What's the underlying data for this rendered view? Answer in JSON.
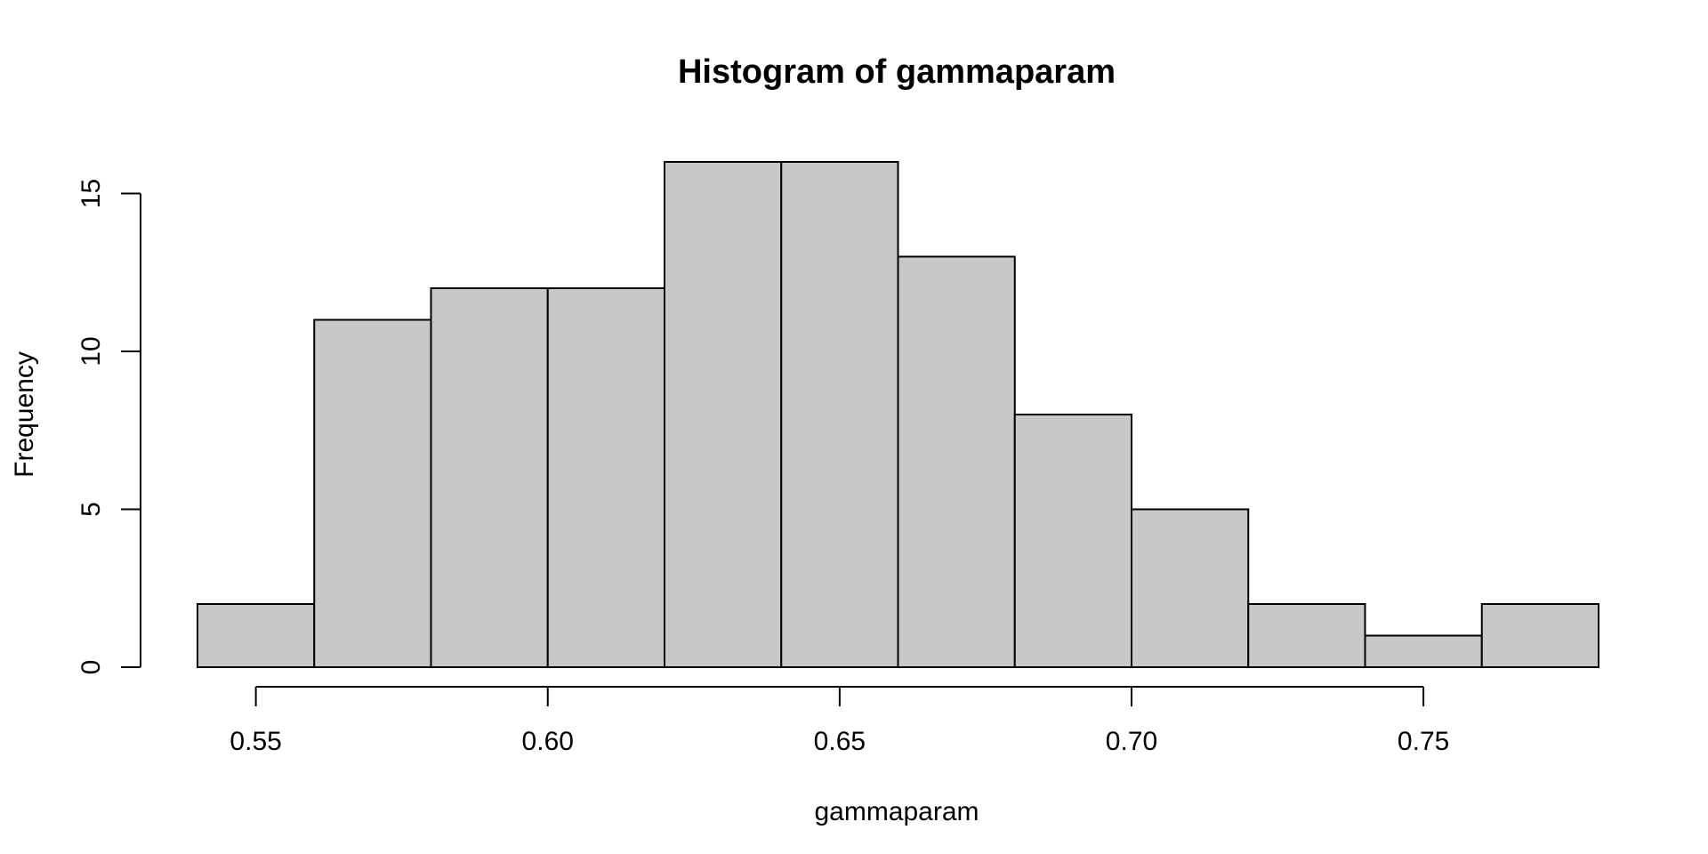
{
  "chart_data": {
    "type": "bar",
    "subtype": "histogram",
    "title": "Histogram of gammaparam",
    "xlabel": "gammaparam",
    "ylabel": "Frequency",
    "bins": [
      {
        "start": 0.54,
        "end": 0.56,
        "count": 2
      },
      {
        "start": 0.56,
        "end": 0.58,
        "count": 11
      },
      {
        "start": 0.58,
        "end": 0.6,
        "count": 12
      },
      {
        "start": 0.6,
        "end": 0.62,
        "count": 12
      },
      {
        "start": 0.62,
        "end": 0.64,
        "count": 16
      },
      {
        "start": 0.64,
        "end": 0.66,
        "count": 16
      },
      {
        "start": 0.66,
        "end": 0.68,
        "count": 13
      },
      {
        "start": 0.68,
        "end": 0.7,
        "count": 8
      },
      {
        "start": 0.7,
        "end": 0.72,
        "count": 5
      },
      {
        "start": 0.72,
        "end": 0.74,
        "count": 2
      },
      {
        "start": 0.74,
        "end": 0.76,
        "count": 1
      },
      {
        "start": 0.76,
        "end": 0.78,
        "count": 2
      }
    ],
    "xlim": [
      0.54,
      0.78
    ],
    "ylim": [
      0,
      16
    ],
    "x_ticks": [
      0.55,
      0.6,
      0.65,
      0.7,
      0.75
    ],
    "x_tick_labels": [
      "0.55",
      "0.60",
      "0.65",
      "0.70",
      "0.75"
    ],
    "y_ticks": [
      0,
      5,
      10,
      15
    ],
    "y_tick_labels": [
      "0",
      "5",
      "10",
      "15"
    ],
    "grid": false,
    "bar_color": "#c8c8c8",
    "edge_color": "#000000",
    "background": "#ffffff"
  }
}
